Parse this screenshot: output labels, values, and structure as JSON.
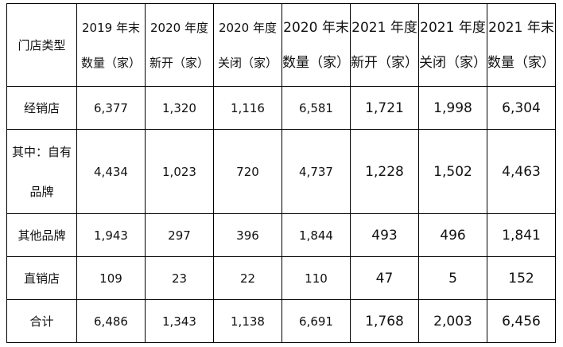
{
  "header": {
    "col0": "门店类型",
    "cols": [
      {
        "line1": "2019 年末",
        "line2": "数量（家）"
      },
      {
        "line1": "2020 年度",
        "line2": "新开（家）"
      },
      {
        "line1": "2020 年度",
        "line2": "关闭（家）"
      },
      {
        "line1": "2020 年末",
        "line2": "数量（家）"
      },
      {
        "line1": "2021 年度",
        "line2": "新开（家）"
      },
      {
        "line1": "2021 年度",
        "line2": "关闭（家）"
      },
      {
        "line1": "2021 年末",
        "line2": "数量（家）"
      }
    ]
  },
  "rows": [
    {
      "label": "经销店",
      "values": [
        "6,377",
        "1,320",
        "1,116",
        "6,581",
        "1,721",
        "1,998",
        "6,304"
      ]
    },
    {
      "label_line1": "其中：自有",
      "label_line2": "品牌",
      "values": [
        "4,434",
        "1,023",
        "720",
        "4,737",
        "1,228",
        "1,502",
        "4,463"
      ]
    },
    {
      "label": "其他品牌",
      "values": [
        "1,943",
        "297",
        "396",
        "1,844",
        "493",
        "496",
        "1,841"
      ]
    },
    {
      "label": "直销店",
      "values": [
        "109",
        "23",
        "22",
        "110",
        "47",
        "5",
        "152"
      ]
    },
    {
      "label": "合计",
      "values": [
        "6,486",
        "1,343",
        "1,138",
        "6,691",
        "1,768",
        "2,003",
        "6,456"
      ]
    }
  ]
}
